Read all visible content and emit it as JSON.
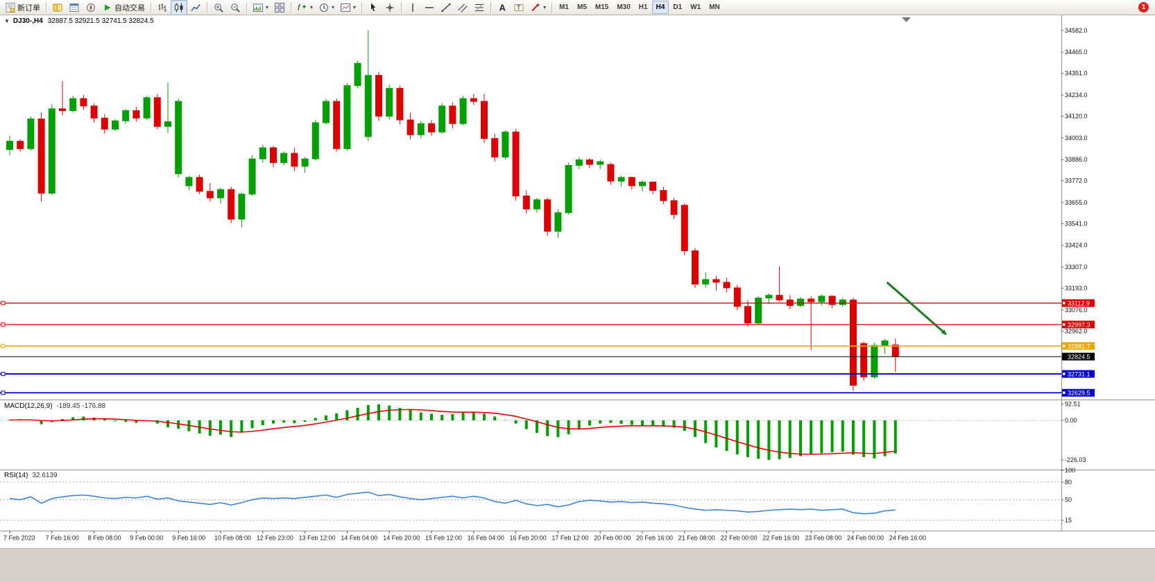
{
  "app": {
    "notifications_badge": "1"
  },
  "icons": {
    "collapse_caret": "▼",
    "dropdown_caret": "▾"
  },
  "toolbar": {
    "items": [
      {
        "type": "button",
        "name": "new-order-button",
        "icon": "new-order",
        "label": "新订单"
      },
      {
        "type": "sep"
      },
      {
        "type": "button",
        "name": "market-watch-button",
        "icon": "market-watch"
      },
      {
        "type": "button",
        "name": "data-window-button",
        "icon": "data-window"
      },
      {
        "type": "button",
        "name": "navigator-button",
        "icon": "navigator"
      },
      {
        "type": "button",
        "name": "autotrade-button",
        "icon": "autotrade",
        "label": "自动交易"
      },
      {
        "type": "sep"
      },
      {
        "type": "button",
        "name": "bar-chart-button",
        "icon": "bar-chart"
      },
      {
        "type": "button",
        "name": "candlestick-chart-button",
        "icon": "candle-chart",
        "active": true
      },
      {
        "type": "button",
        "name": "line-chart-button",
        "icon": "line-chart"
      },
      {
        "type": "sep"
      },
      {
        "type": "button",
        "name": "zoom-in-button",
        "icon": "zoom-in"
      },
      {
        "type": "button",
        "name": "zoom-out-button",
        "icon": "zoom-out"
      },
      {
        "type": "sep"
      },
      {
        "type": "button",
        "name": "new-chart-button",
        "icon": "new-chart",
        "caret": true
      },
      {
        "type": "button",
        "name": "tile-windows-button",
        "icon": "tile-windows"
      },
      {
        "type": "sep"
      },
      {
        "type": "button",
        "name": "indicators-button",
        "icon": "indicators",
        "caret": true
      },
      {
        "type": "button",
        "name": "periods-button",
        "icon": "periods",
        "caret": true
      },
      {
        "type": "button",
        "name": "templates-button",
        "icon": "templates",
        "caret": true
      },
      {
        "type": "sep"
      },
      {
        "type": "button",
        "name": "cursor-button",
        "icon": "cursor"
      },
      {
        "type": "button",
        "name": "crosshair-button",
        "icon": "crosshair"
      },
      {
        "type": "sep"
      },
      {
        "type": "button",
        "name": "vertical-line-button",
        "icon": "vline"
      },
      {
        "type": "button",
        "name": "horizontal-line-button",
        "icon": "hline"
      },
      {
        "type": "button",
        "name": "trendline-button",
        "icon": "trendline"
      },
      {
        "type": "button",
        "name": "channel-button",
        "icon": "channel"
      },
      {
        "type": "button",
        "name": "fibonacci-button",
        "icon": "fibo"
      },
      {
        "type": "sep"
      },
      {
        "type": "button",
        "name": "text-button",
        "icon": "text"
      },
      {
        "type": "button",
        "name": "text-label-button",
        "icon": "label"
      },
      {
        "type": "button",
        "name": "shapes-button",
        "icon": "shapes",
        "caret": true
      },
      {
        "type": "sep"
      },
      {
        "type": "tf",
        "label": "M1"
      },
      {
        "type": "tf",
        "label": "M5"
      },
      {
        "type": "tf",
        "label": "M15"
      },
      {
        "type": "tf",
        "label": "M30"
      },
      {
        "type": "tf",
        "label": "H1"
      },
      {
        "type": "tf",
        "label": "H4",
        "active": true
      },
      {
        "type": "tf",
        "label": "D1"
      },
      {
        "type": "tf",
        "label": "W1"
      },
      {
        "type": "tf",
        "label": "MN"
      }
    ]
  },
  "chart": {
    "symbol_period": "DJ30-,H4",
    "ohlc_text": "32887.5 32921.5 32741.5 32824.5"
  },
  "chart_data": {
    "type": "candlestick",
    "symbol": "DJ30-",
    "period": "H4",
    "current_ohlc": {
      "open": 32887.5,
      "high": 32921.5,
      "low": 32741.5,
      "close": 32824.5
    },
    "colors": {
      "bull": "#00a000",
      "bear": "#dc0000",
      "macd_hist": "#00a000",
      "macd_signal": "#e00000",
      "rsi": "#3b84d8",
      "axis_text": "#111111",
      "level_red": "#dd0000",
      "level_orange": "#eda800",
      "level_blue": "#0000cc"
    },
    "price_axis": {
      "price_at_top": 34664,
      "price_at_bottom": 32593,
      "ticks": [
        34582.0,
        34465.0,
        34351.0,
        34234.0,
        34120.0,
        34003.0,
        33886.0,
        33772.0,
        33655.0,
        33541.0,
        33424.0,
        33307.0,
        33193.0,
        33076.0,
        32962.0
      ]
    },
    "candles": [
      [
        33940,
        34015,
        33910,
        33985
      ],
      [
        33985,
        33995,
        33930,
        33945
      ],
      [
        33945,
        34120,
        33935,
        34105
      ],
      [
        34105,
        34140,
        33660,
        33705
      ],
      [
        33705,
        34185,
        33695,
        34160
      ],
      [
        34160,
        34310,
        34125,
        34150
      ],
      [
        34150,
        34230,
        34140,
        34215
      ],
      [
        34215,
        34235,
        34155,
        34175
      ],
      [
        34175,
        34190,
        34085,
        34110
      ],
      [
        34110,
        34130,
        34025,
        34050
      ],
      [
        34050,
        34105,
        34040,
        34095
      ],
      [
        34095,
        34160,
        34080,
        34150
      ],
      [
        34150,
        34170,
        34090,
        34110
      ],
      [
        34110,
        34230,
        34100,
        34220
      ],
      [
        34220,
        34240,
        34050,
        34065
      ],
      [
        34065,
        34300,
        34030,
        34090
      ],
      [
        33810,
        34215,
        33790,
        34200
      ],
      [
        33745,
        33800,
        33720,
        33790
      ],
      [
        33790,
        33805,
        33700,
        33715
      ],
      [
        33715,
        33760,
        33660,
        33680
      ],
      [
        33680,
        33735,
        33650,
        33725
      ],
      [
        33725,
        33740,
        33545,
        33565
      ],
      [
        33565,
        33710,
        33520,
        33700
      ],
      [
        33700,
        33910,
        33690,
        33890
      ],
      [
        33890,
        33965,
        33870,
        33950
      ],
      [
        33950,
        33960,
        33845,
        33870
      ],
      [
        33870,
        33930,
        33855,
        33920
      ],
      [
        33920,
        33950,
        33825,
        33850
      ],
      [
        33850,
        33900,
        33815,
        33890
      ],
      [
        33890,
        34100,
        33880,
        34085
      ],
      [
        34085,
        34215,
        34075,
        34200
      ],
      [
        34200,
        34215,
        33930,
        33945
      ],
      [
        33945,
        34300,
        33935,
        34285
      ],
      [
        34285,
        34420,
        34270,
        34405
      ],
      [
        34010,
        34582,
        33985,
        34340
      ],
      [
        34340,
        34360,
        34095,
        34120
      ],
      [
        34120,
        34290,
        34100,
        34270
      ],
      [
        34270,
        34285,
        34075,
        34100
      ],
      [
        34100,
        34140,
        33995,
        34020
      ],
      [
        34020,
        34095,
        34000,
        34080
      ],
      [
        34080,
        34100,
        34015,
        34035
      ],
      [
        34035,
        34190,
        34025,
        34175
      ],
      [
        34175,
        34195,
        34055,
        34080
      ],
      [
        34080,
        34230,
        34070,
        34215
      ],
      [
        34215,
        34240,
        34180,
        34200
      ],
      [
        34200,
        34240,
        33975,
        34000
      ],
      [
        34000,
        34025,
        33875,
        33900
      ],
      [
        33900,
        34045,
        33885,
        34035
      ],
      [
        34035,
        34050,
        33665,
        33690
      ],
      [
        33690,
        33720,
        33595,
        33620
      ],
      [
        33620,
        33680,
        33600,
        33670
      ],
      [
        33670,
        33680,
        33475,
        33500
      ],
      [
        33500,
        33620,
        33465,
        33600
      ],
      [
        33600,
        33870,
        33590,
        33855
      ],
      [
        33855,
        33900,
        33835,
        33885
      ],
      [
        33885,
        33895,
        33840,
        33860
      ],
      [
        33860,
        33885,
        33835,
        33875
      ],
      [
        33860,
        33870,
        33750,
        33770
      ],
      [
        33770,
        33800,
        33740,
        33790
      ],
      [
        33790,
        33795,
        33725,
        33745
      ],
      [
        33745,
        33775,
        33715,
        33765
      ],
      [
        33765,
        33770,
        33700,
        33720
      ],
      [
        33720,
        33740,
        33645,
        33665
      ],
      [
        33665,
        33680,
        33565,
        33590
      ],
      [
        33640,
        33650,
        33370,
        33395
      ],
      [
        33395,
        33410,
        33195,
        33215
      ],
      [
        33215,
        33280,
        33195,
        33240
      ],
      [
        33240,
        33260,
        33180,
        33225
      ],
      [
        33225,
        33250,
        33170,
        33195
      ],
      [
        33195,
        33210,
        33075,
        33095
      ],
      [
        33095,
        33130,
        32985,
        33005
      ],
      [
        33005,
        33150,
        33000,
        33140
      ],
      [
        33140,
        33165,
        33110,
        33155
      ],
      [
        33155,
        33310,
        33120,
        33130
      ],
      [
        33130,
        33155,
        33080,
        33100
      ],
      [
        33100,
        33145,
        33090,
        33135
      ],
      [
        33135,
        33150,
        32860,
        33120
      ],
      [
        33120,
        33160,
        33100,
        33150
      ],
      [
        33150,
        33155,
        33085,
        33105
      ],
      [
        33105,
        33140,
        33095,
        33130
      ],
      [
        33130,
        33140,
        32640,
        32670
      ],
      [
        32895,
        32905,
        32695,
        32715
      ],
      [
        32715,
        32900,
        32705,
        32885
      ],
      [
        32885,
        32920,
        32840,
        32910
      ],
      [
        32887.5,
        32921.5,
        32741.5,
        32824.5
      ]
    ],
    "lev_note": "horizontal support/resistance lines with right-axis price tags",
    "levels": [
      {
        "price": 33112.9,
        "color": "#dd0000",
        "width": 1.3,
        "handle": true
      },
      {
        "price": 32997.3,
        "color": "#dd0000",
        "width": 1.3,
        "handle": true
      },
      {
        "price": 32881.7,
        "color": "#eda800",
        "width": 1.6,
        "handle": true
      },
      {
        "price": 32824.5,
        "color": "#000000",
        "width": 1,
        "handle": false,
        "bid": true
      },
      {
        "price": 32731.1,
        "color": "#0000cc",
        "width": 1.8,
        "handle": true
      },
      {
        "price": 32629.5,
        "color": "#0000cc",
        "width": 1.8,
        "handle": true
      }
    ],
    "time_labels": [
      "7 Feb 2023",
      "7 Feb 16:00",
      "8 Feb 08:00",
      "9 Feb 00:00",
      "9 Feb 16:00",
      "10 Feb 08:00",
      "12 Feb 23:00",
      "13 Feb 12:00",
      "14 Feb 04:00",
      "14 Feb 20:00",
      "15 Feb 12:00",
      "16 Feb 04:00",
      "16 Feb 20:00",
      "17 Feb 12:00",
      "20 Feb 00:00",
      "20 Feb 16:00",
      "21 Feb 08:00",
      "22 Feb 00:00",
      "22 Feb 16:00",
      "23 Feb 08:00",
      "24 Feb 00:00",
      "24 Feb 16:00"
    ],
    "annotations": [
      {
        "type": "arrow",
        "color": "#1e7d1e",
        "from": {
          "bar": 83.2,
          "price": 33225
        },
        "to": {
          "bar": 88.8,
          "price": 32945
        }
      }
    ],
    "macd": {
      "title": "MACD(12,26,9)",
      "values_text": "-189.45 -176.88",
      "axis_labels": [
        92.51,
        0,
        -226.03
      ],
      "histogram": [
        4,
        7,
        3,
        -22,
        -10,
        8,
        18,
        22,
        16,
        6,
        -4,
        -9,
        -14,
        -6,
        -18,
        -40,
        -48,
        -62,
        -75,
        -88,
        -82,
        -95,
        -70,
        -45,
        -28,
        -18,
        -12,
        -16,
        -8,
        14,
        28,
        40,
        58,
        72,
        88,
        92,
        85,
        72,
        60,
        45,
        38,
        32,
        36,
        44,
        46,
        38,
        22,
        2,
        -18,
        -50,
        -72,
        -90,
        -96,
        -80,
        -52,
        -30,
        -18,
        -14,
        -20,
        -26,
        -30,
        -33,
        -36,
        -42,
        -60,
        -95,
        -130,
        -155,
        -175,
        -195,
        -210,
        -220,
        -226,
        -222,
        -215,
        -205,
        -196,
        -188,
        -182,
        -178,
        -196,
        -210,
        -218,
        -205,
        -189.45
      ],
      "signal": [
        2,
        3,
        3,
        -1,
        -3,
        -1,
        3,
        7,
        9,
        9,
        7,
        4,
        0,
        -2,
        -5,
        -12,
        -20,
        -29,
        -39,
        -49,
        -57,
        -65,
        -67,
        -63,
        -56,
        -48,
        -41,
        -35,
        -29,
        -20,
        -10,
        1,
        13,
        26,
        39,
        50,
        58,
        61,
        62,
        60,
        56,
        51,
        48,
        47,
        47,
        45,
        41,
        33,
        23,
        8,
        -8,
        -25,
        -40,
        -48,
        -50,
        -46,
        -41,
        -36,
        -33,
        -31,
        -31,
        -31,
        -32,
        -34,
        -39,
        -50,
        -66,
        -84,
        -103,
        -122,
        -140,
        -157,
        -171,
        -182,
        -189,
        -193,
        -194,
        -193,
        -191,
        -188,
        -185,
        -188,
        -190,
        -183,
        -176.88
      ]
    },
    "rsi": {
      "title": "RSI(14)",
      "value_text": "32.6139",
      "levels": [
        80,
        50,
        15
      ],
      "axis_labels": [
        100,
        80,
        50,
        15
      ],
      "values": [
        52,
        50,
        55,
        44,
        52,
        55,
        57,
        58,
        56,
        53,
        52,
        54,
        53,
        56,
        51,
        53,
        48,
        46,
        44,
        42,
        45,
        41,
        45,
        50,
        53,
        52,
        53,
        52,
        54,
        56,
        58,
        54,
        59,
        61,
        63,
        57,
        59,
        55,
        52,
        50,
        52,
        54,
        56,
        53,
        56,
        53,
        47,
        44,
        49,
        43,
        40,
        42,
        38,
        41,
        47,
        49,
        48,
        46,
        47,
        45,
        46,
        44,
        43,
        41,
        37,
        34,
        32,
        33,
        32,
        31,
        29,
        30,
        32,
        33,
        34,
        33,
        34,
        32,
        33,
        34,
        28,
        26,
        27,
        31,
        32.6139
      ]
    }
  }
}
